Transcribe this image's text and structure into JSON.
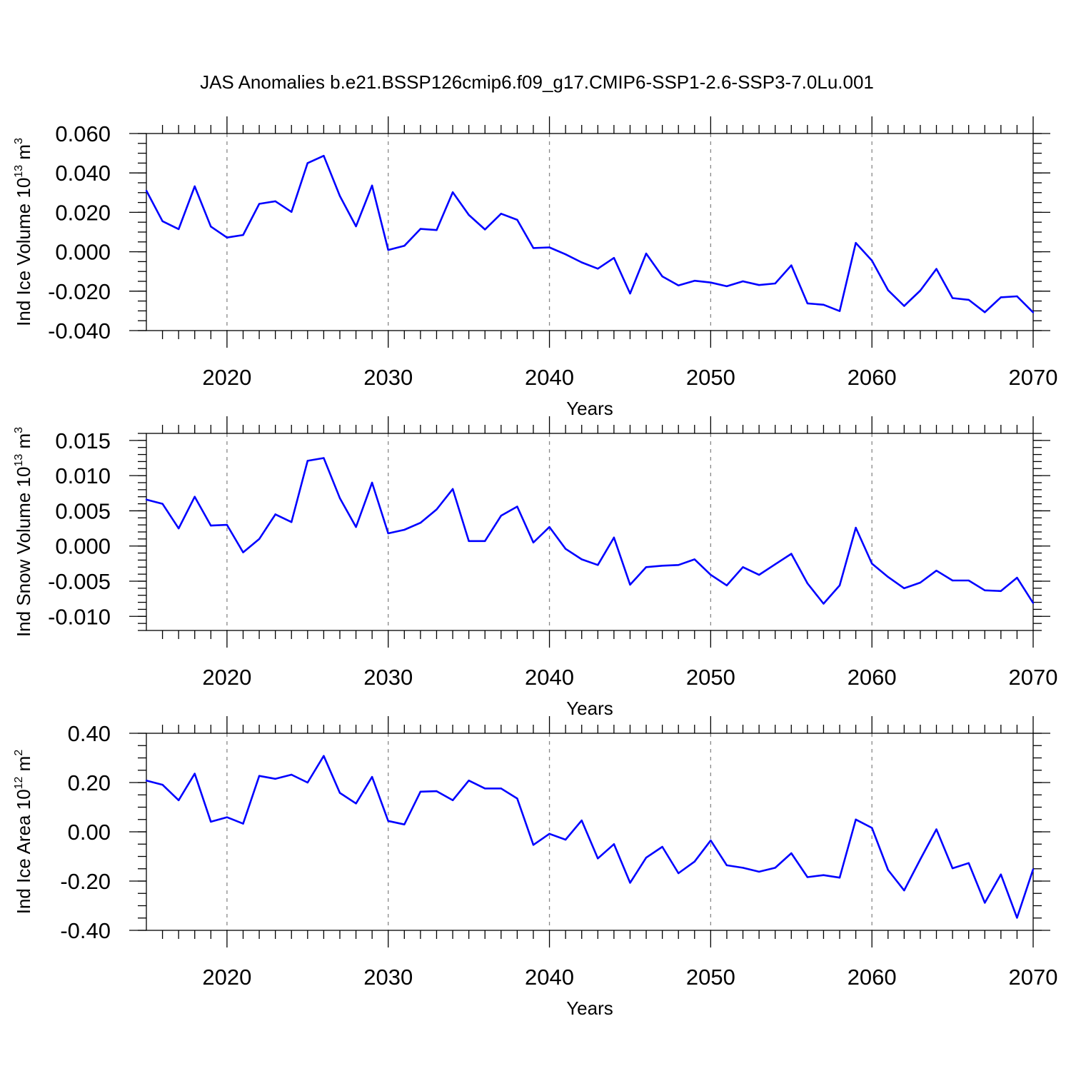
{
  "title": "JAS Anomalies b.e21.BSSP126cmip6.f09_g17.CMIP6-SSP1-2.6-SSP3-7.0Lu.001",
  "colors": {
    "line": "#0000ff",
    "axis": "#000000",
    "grid": "#888888"
  },
  "chart_data": [
    {
      "type": "line",
      "ylabel": {
        "text": "Ind Ice Volume 10",
        "sup": "13",
        "unit": " m",
        "unit_sup": "3"
      },
      "xlabel": "Years",
      "xlim": [
        2015,
        2070
      ],
      "ylim": [
        -0.04,
        0.06
      ],
      "yticks": [
        -0.04,
        -0.02,
        0.0,
        0.02,
        0.04,
        0.06
      ],
      "ytick_labels": [
        "-0.040",
        "-0.020",
        "0.000",
        "0.020",
        "0.040",
        "0.060"
      ],
      "yminor_step": 0.005,
      "xticks": [
        2020,
        2030,
        2040,
        2050,
        2060,
        2070
      ],
      "xtick_labels": [
        "2020",
        "2030",
        "2040",
        "2050",
        "2060",
        "2070"
      ],
      "grid": "vertical dashed at major x ticks",
      "x": [
        2015,
        2016,
        2017,
        2018,
        2019,
        2020,
        2021,
        2022,
        2023,
        2024,
        2025,
        2026,
        2027,
        2028,
        2029,
        2030,
        2031,
        2032,
        2033,
        2034,
        2035,
        2036,
        2037,
        2038,
        2039,
        2040,
        2041,
        2042,
        2043,
        2044,
        2045,
        2046,
        2047,
        2048,
        2049,
        2050,
        2051,
        2052,
        2053,
        2054,
        2055,
        2056,
        2057,
        2058,
        2059,
        2060,
        2061,
        2062,
        2063,
        2064,
        2065,
        2066,
        2067,
        2068,
        2069,
        2070
      ],
      "values": [
        0.031,
        0.0155,
        0.0115,
        0.0332,
        0.0128,
        0.0072,
        0.0085,
        0.0243,
        0.0256,
        0.0202,
        0.045,
        0.0487,
        0.0283,
        0.0129,
        0.0336,
        0.0009,
        0.003,
        0.0116,
        0.011,
        0.0302,
        0.0187,
        0.0113,
        0.0193,
        0.0162,
        0.0019,
        0.0022,
        -0.0013,
        -0.0054,
        -0.0086,
        -0.0031,
        -0.0212,
        -0.0009,
        -0.0125,
        -0.0171,
        -0.0147,
        -0.0156,
        -0.0175,
        -0.015,
        -0.0169,
        -0.0161,
        -0.0069,
        -0.0262,
        -0.0269,
        -0.0301,
        0.0045,
        -0.0045,
        -0.0195,
        -0.0275,
        -0.0197,
        -0.0087,
        -0.0235,
        -0.0244,
        -0.0307,
        -0.0231,
        -0.0226,
        -0.0308
      ]
    },
    {
      "type": "line",
      "ylabel": {
        "text": "Ind Snow Volume 10",
        "sup": "13",
        "unit": " m",
        "unit_sup": "3"
      },
      "xlabel": "Years",
      "xlim": [
        2015,
        2070
      ],
      "ylim": [
        -0.012,
        0.016
      ],
      "yticks": [
        -0.01,
        -0.005,
        0.0,
        0.005,
        0.01,
        0.015
      ],
      "ytick_labels": [
        "-0.010",
        "-0.005",
        "0.000",
        "0.005",
        "0.010",
        "0.015"
      ],
      "yminor_step": 0.001,
      "xticks": [
        2020,
        2030,
        2040,
        2050,
        2060,
        2070
      ],
      "xtick_labels": [
        "2020",
        "2030",
        "2040",
        "2050",
        "2060",
        "2070"
      ],
      "grid": "vertical dashed at major x ticks",
      "x": [
        2015,
        2016,
        2017,
        2018,
        2019,
        2020,
        2021,
        2022,
        2023,
        2024,
        2025,
        2026,
        2027,
        2028,
        2029,
        2030,
        2031,
        2032,
        2033,
        2034,
        2035,
        2036,
        2037,
        2038,
        2039,
        2040,
        2041,
        2042,
        2043,
        2044,
        2045,
        2046,
        2047,
        2048,
        2049,
        2050,
        2051,
        2052,
        2053,
        2054,
        2055,
        2056,
        2057,
        2058,
        2059,
        2060,
        2061,
        2062,
        2063,
        2064,
        2065,
        2066,
        2067,
        2068,
        2069,
        2070
      ],
      "values": [
        0.0066,
        0.006,
        0.0025,
        0.007,
        0.0029,
        0.003,
        -0.0009,
        0.001,
        0.0045,
        0.0034,
        0.0121,
        0.0125,
        0.0068,
        0.0027,
        0.009,
        0.0018,
        0.0023,
        0.0033,
        0.0052,
        0.0081,
        0.0007,
        0.0007,
        0.0043,
        0.0056,
        0.0005,
        0.0027,
        -0.0004,
        -0.0019,
        -0.0027,
        0.0012,
        -0.0055,
        -0.003,
        -0.0028,
        -0.0027,
        -0.0019,
        -0.0041,
        -0.0056,
        -0.003,
        -0.0041,
        -0.0026,
        -0.0011,
        -0.0053,
        -0.0082,
        -0.0056,
        0.0026,
        -0.0025,
        -0.0044,
        -0.006,
        -0.0052,
        -0.0035,
        -0.0049,
        -0.0049,
        -0.0063,
        -0.0064,
        -0.0045,
        -0.0081
      ]
    },
    {
      "type": "line",
      "ylabel": {
        "text": "Ind Ice Area 10",
        "sup": "12",
        "unit": " m",
        "unit_sup": "2"
      },
      "xlabel": "Years",
      "xlim": [
        2015,
        2070
      ],
      "ylim": [
        -0.4,
        0.4
      ],
      "yticks": [
        -0.4,
        -0.2,
        0.0,
        0.2,
        0.4
      ],
      "ytick_labels": [
        "-0.40",
        "-0.20",
        "0.00",
        "0.20",
        "0.40"
      ],
      "yminor_step": 0.05,
      "xticks": [
        2020,
        2030,
        2040,
        2050,
        2060,
        2070
      ],
      "xtick_labels": [
        "2020",
        "2030",
        "2040",
        "2050",
        "2060",
        "2070"
      ],
      "grid": "vertical dashed at major x ticks",
      "x": [
        2015,
        2016,
        2017,
        2018,
        2019,
        2020,
        2021,
        2022,
        2023,
        2024,
        2025,
        2026,
        2027,
        2028,
        2029,
        2030,
        2031,
        2032,
        2033,
        2034,
        2035,
        2036,
        2037,
        2038,
        2039,
        2040,
        2041,
        2042,
        2043,
        2044,
        2045,
        2046,
        2047,
        2048,
        2049,
        2050,
        2051,
        2052,
        2053,
        2054,
        2055,
        2056,
        2057,
        2058,
        2059,
        2060,
        2061,
        2062,
        2063,
        2064,
        2065,
        2066,
        2067,
        2068,
        2069,
        2070
      ],
      "values": [
        0.208,
        0.191,
        0.128,
        0.236,
        0.041,
        0.059,
        0.033,
        0.227,
        0.215,
        0.232,
        0.2,
        0.308,
        0.158,
        0.115,
        0.223,
        0.044,
        0.03,
        0.163,
        0.165,
        0.128,
        0.208,
        0.176,
        0.176,
        0.135,
        -0.053,
        -0.008,
        -0.032,
        0.046,
        -0.108,
        -0.05,
        -0.207,
        -0.105,
        -0.061,
        -0.168,
        -0.121,
        -0.035,
        -0.136,
        -0.146,
        -0.162,
        -0.146,
        -0.087,
        -0.184,
        -0.176,
        -0.186,
        0.05,
        0.016,
        -0.155,
        -0.238,
        -0.112,
        0.01,
        -0.148,
        -0.127,
        -0.288,
        -0.173,
        -0.349,
        -0.152
      ]
    }
  ]
}
